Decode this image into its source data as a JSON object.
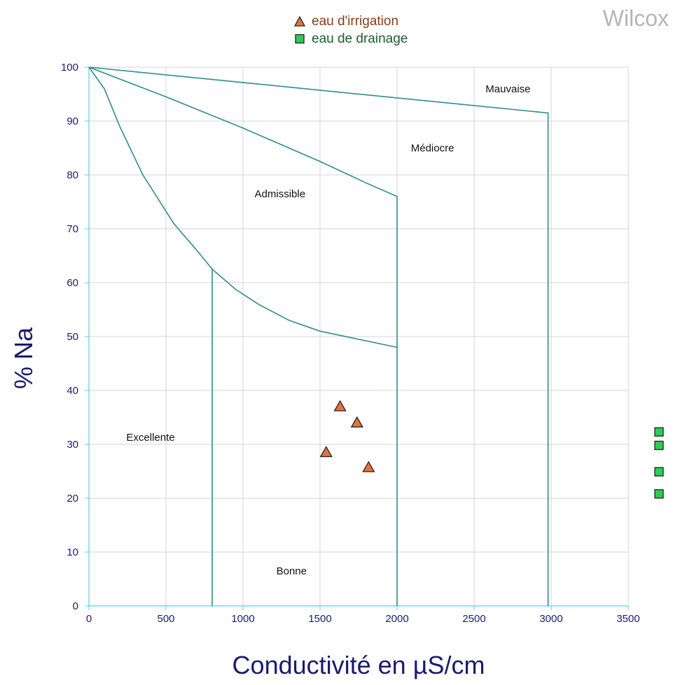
{
  "watermark": "Wilcox",
  "legend": [
    {
      "label": "eau d'irrigation",
      "marker": "triangle",
      "color": "#e8703a",
      "text_color": "#8a3d14"
    },
    {
      "label": "eau de drainage",
      "marker": "square",
      "color": "#2ecc55",
      "text_color": "#1d5e2b"
    }
  ],
  "chart_data": {
    "type": "scatter",
    "xlabel": "Conductivité en µS/cm",
    "ylabel": "% Na",
    "xlim": [
      0,
      3500
    ],
    "ylim": [
      0,
      100
    ],
    "xticks": [
      0,
      500,
      1000,
      1500,
      2000,
      2500,
      3000,
      3500
    ],
    "yticks": [
      0,
      10,
      20,
      30,
      40,
      50,
      60,
      70,
      80,
      90,
      100
    ],
    "grid": true,
    "series": [
      {
        "name": "eau d'irrigation",
        "marker": "triangle",
        "color": "#e8703a",
        "x": [
          1630,
          1740,
          1540,
          1815
        ],
        "y": [
          37,
          34,
          28.5,
          25.7
        ]
      },
      {
        "name": "eau de drainage",
        "marker": "square",
        "color": "#2ecc55",
        "x": [
          3700,
          3700,
          3700,
          3700
        ],
        "y": [
          32.3,
          29.8,
          24.9,
          20.8
        ]
      }
    ],
    "boundaries": [
      {
        "points": [
          [
            0,
            100
          ],
          [
            2980,
            91.5
          ],
          [
            2980,
            0
          ]
        ]
      },
      {
        "points": [
          [
            0,
            100
          ],
          [
            500,
            94.5
          ],
          [
            1000,
            88.7
          ],
          [
            1500,
            82.5
          ],
          [
            1800,
            78.5
          ],
          [
            2000,
            76
          ],
          [
            2000,
            0
          ]
        ]
      },
      {
        "points": [
          [
            0,
            100
          ],
          [
            100,
            96
          ],
          [
            200,
            89
          ],
          [
            350,
            80
          ],
          [
            550,
            71
          ],
          [
            700,
            66
          ],
          [
            800,
            62.5
          ],
          [
            950,
            58.8
          ],
          [
            1100,
            56
          ],
          [
            1300,
            53
          ],
          [
            1500,
            51
          ],
          [
            1750,
            49.5
          ],
          [
            2000,
            48
          ]
        ]
      },
      {
        "points": [
          [
            800,
            62.5
          ],
          [
            800,
            0
          ]
        ]
      }
    ],
    "regions": [
      {
        "label": "Mauvaise",
        "x": 2720,
        "y": 96
      },
      {
        "label": "Médiocre",
        "x": 2230,
        "y": 85
      },
      {
        "label": "Admissible",
        "x": 1240,
        "y": 76.5
      },
      {
        "label": "Excellente",
        "x": 400,
        "y": 31.3
      },
      {
        "label": "Bonne",
        "x": 1315,
        "y": 6.5
      }
    ]
  }
}
